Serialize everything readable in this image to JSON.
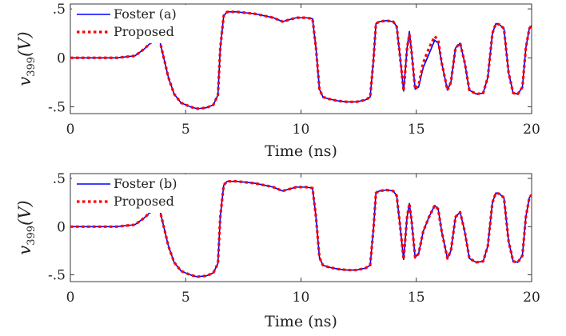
{
  "chart_data": [
    {
      "type": "line",
      "xlabel": "Time (ns)",
      "ylabel": {
        "base": "v",
        "subscript": "399",
        "unit": "(V)"
      },
      "xlim": [
        0,
        20
      ],
      "ylim": [
        -0.57,
        0.55
      ],
      "xticks": [
        0,
        5,
        10,
        15,
        20
      ],
      "yticks": [
        -0.5,
        0,
        0.5
      ],
      "grid": false,
      "legend_position": "top-left",
      "series": [
        {
          "name": "Foster (a)",
          "color": "#0000ff",
          "style": "solid",
          "x": [
            0,
            2.0,
            2.8,
            3.2,
            3.6,
            3.75,
            3.9,
            4.05,
            4.25,
            4.5,
            4.8,
            5.2,
            5.5,
            5.9,
            6.2,
            6.4,
            6.5,
            6.65,
            6.8,
            7.2,
            7.6,
            8.0,
            8.4,
            8.8,
            9.2,
            9.5,
            9.8,
            10.2,
            10.5,
            10.65,
            10.8,
            10.95,
            11.2,
            11.6,
            12.0,
            12.4,
            12.8,
            13.0,
            13.15,
            13.25,
            13.4,
            13.7,
            14.0,
            14.15,
            14.3,
            14.45,
            14.6,
            14.7,
            14.8,
            14.95,
            15.1,
            15.3,
            15.55,
            15.8,
            15.95,
            16.1,
            16.35,
            16.5,
            16.7,
            16.9,
            17.1,
            17.3,
            17.6,
            17.9,
            18.1,
            18.3,
            18.45,
            18.6,
            18.8,
            19.0,
            19.2,
            19.4,
            19.6,
            19.75,
            19.9,
            20.0
          ],
          "y": [
            0.0,
            0.0,
            0.02,
            0.09,
            0.18,
            0.2,
            0.15,
            0.0,
            -0.2,
            -0.37,
            -0.46,
            -0.5,
            -0.52,
            -0.51,
            -0.48,
            -0.38,
            0.1,
            0.43,
            0.47,
            0.47,
            0.46,
            0.45,
            0.43,
            0.41,
            0.37,
            0.39,
            0.41,
            0.41,
            0.4,
            0.1,
            -0.32,
            -0.4,
            -0.42,
            -0.44,
            -0.45,
            -0.45,
            -0.43,
            -0.4,
            0.0,
            0.35,
            0.37,
            0.38,
            0.37,
            0.32,
            0.0,
            -0.34,
            0.1,
            0.27,
            0.05,
            -0.32,
            -0.3,
            -0.1,
            0.04,
            0.18,
            0.15,
            -0.05,
            -0.33,
            -0.25,
            0.1,
            0.15,
            -0.05,
            -0.33,
            -0.37,
            -0.36,
            -0.2,
            0.25,
            0.35,
            0.34,
            0.3,
            -0.15,
            -0.36,
            -0.37,
            -0.3,
            0.1,
            0.3,
            0.33
          ]
        },
        {
          "name": "Proposed",
          "color": "#ff0000",
          "style": "dotted",
          "x": [
            0,
            2.0,
            2.8,
            3.2,
            3.6,
            3.75,
            3.9,
            4.05,
            4.25,
            4.5,
            4.8,
            5.2,
            5.5,
            5.9,
            6.2,
            6.4,
            6.5,
            6.65,
            6.8,
            7.2,
            7.6,
            8.0,
            8.4,
            8.8,
            9.2,
            9.5,
            9.8,
            10.2,
            10.5,
            10.65,
            10.8,
            10.95,
            11.2,
            11.6,
            12.0,
            12.4,
            12.8,
            13.0,
            13.15,
            13.25,
            13.4,
            13.7,
            14.0,
            14.15,
            14.3,
            14.45,
            14.6,
            14.7,
            14.8,
            14.95,
            15.1,
            15.3,
            15.55,
            15.8,
            15.95,
            16.1,
            16.35,
            16.5,
            16.7,
            16.9,
            17.1,
            17.3,
            17.6,
            17.9,
            18.1,
            18.3,
            18.45,
            18.6,
            18.8,
            19.0,
            19.2,
            19.4,
            19.6,
            19.75,
            19.9,
            20.0
          ],
          "y": [
            0.0,
            0.0,
            0.02,
            0.09,
            0.18,
            0.2,
            0.15,
            0.0,
            -0.2,
            -0.37,
            -0.46,
            -0.5,
            -0.52,
            -0.51,
            -0.48,
            -0.38,
            0.1,
            0.43,
            0.47,
            0.47,
            0.46,
            0.45,
            0.43,
            0.41,
            0.37,
            0.39,
            0.41,
            0.41,
            0.4,
            0.1,
            -0.32,
            -0.4,
            -0.42,
            -0.44,
            -0.45,
            -0.45,
            -0.43,
            -0.4,
            0.0,
            0.35,
            0.37,
            0.38,
            0.37,
            0.32,
            0.0,
            -0.34,
            0.1,
            0.24,
            0.05,
            -0.32,
            -0.28,
            -0.05,
            0.1,
            0.22,
            0.18,
            -0.05,
            -0.33,
            -0.25,
            0.1,
            0.15,
            -0.05,
            -0.33,
            -0.37,
            -0.36,
            -0.2,
            0.25,
            0.35,
            0.34,
            0.3,
            -0.15,
            -0.36,
            -0.37,
            -0.3,
            0.1,
            0.3,
            0.33
          ]
        }
      ]
    },
    {
      "type": "line",
      "xlabel": "Time (ns)",
      "ylabel": {
        "base": "v",
        "subscript": "399",
        "unit": "(V)"
      },
      "xlim": [
        0,
        20
      ],
      "ylim": [
        -0.57,
        0.55
      ],
      "xticks": [
        0,
        5,
        10,
        15,
        20
      ],
      "yticks": [
        -0.5,
        0,
        0.5
      ],
      "grid": false,
      "legend_position": "top-left",
      "series": [
        {
          "name": "Foster (b)",
          "color": "#0000ff",
          "style": "solid",
          "x": [
            0,
            2.0,
            2.8,
            3.2,
            3.6,
            3.75,
            3.9,
            4.05,
            4.25,
            4.5,
            4.8,
            5.2,
            5.5,
            5.9,
            6.2,
            6.4,
            6.5,
            6.65,
            6.8,
            7.2,
            7.6,
            8.0,
            8.4,
            8.8,
            9.2,
            9.5,
            9.8,
            10.2,
            10.5,
            10.65,
            10.8,
            10.95,
            11.2,
            11.6,
            12.0,
            12.4,
            12.8,
            13.0,
            13.15,
            13.25,
            13.4,
            13.7,
            14.0,
            14.15,
            14.3,
            14.45,
            14.6,
            14.7,
            14.8,
            14.95,
            15.1,
            15.3,
            15.55,
            15.8,
            15.95,
            16.1,
            16.35,
            16.5,
            16.7,
            16.9,
            17.1,
            17.3,
            17.6,
            17.9,
            18.1,
            18.3,
            18.45,
            18.6,
            18.8,
            19.0,
            19.2,
            19.4,
            19.6,
            19.75,
            19.9,
            20.0
          ],
          "y": [
            0.0,
            0.0,
            0.02,
            0.09,
            0.18,
            0.2,
            0.15,
            0.0,
            -0.2,
            -0.37,
            -0.46,
            -0.5,
            -0.52,
            -0.51,
            -0.48,
            -0.38,
            0.1,
            0.43,
            0.47,
            0.47,
            0.46,
            0.45,
            0.43,
            0.41,
            0.37,
            0.39,
            0.41,
            0.41,
            0.4,
            0.1,
            -0.32,
            -0.4,
            -0.42,
            -0.44,
            -0.45,
            -0.45,
            -0.43,
            -0.4,
            0.0,
            0.35,
            0.37,
            0.38,
            0.37,
            0.32,
            0.0,
            -0.34,
            0.1,
            0.24,
            0.05,
            -0.32,
            -0.28,
            -0.05,
            0.1,
            0.22,
            0.18,
            -0.05,
            -0.33,
            -0.25,
            0.1,
            0.15,
            -0.05,
            -0.33,
            -0.37,
            -0.36,
            -0.2,
            0.25,
            0.35,
            0.34,
            0.3,
            -0.15,
            -0.36,
            -0.37,
            -0.3,
            0.1,
            0.3,
            0.33
          ]
        },
        {
          "name": "Proposed",
          "color": "#ff0000",
          "style": "dotted",
          "x": [
            0,
            2.0,
            2.8,
            3.2,
            3.6,
            3.75,
            3.9,
            4.05,
            4.25,
            4.5,
            4.8,
            5.2,
            5.5,
            5.9,
            6.2,
            6.4,
            6.5,
            6.65,
            6.8,
            7.2,
            7.6,
            8.0,
            8.4,
            8.8,
            9.2,
            9.5,
            9.8,
            10.2,
            10.5,
            10.65,
            10.8,
            10.95,
            11.2,
            11.6,
            12.0,
            12.4,
            12.8,
            13.0,
            13.15,
            13.25,
            13.4,
            13.7,
            14.0,
            14.15,
            14.3,
            14.45,
            14.6,
            14.7,
            14.8,
            14.95,
            15.1,
            15.3,
            15.55,
            15.8,
            15.95,
            16.1,
            16.35,
            16.5,
            16.7,
            16.9,
            17.1,
            17.3,
            17.6,
            17.9,
            18.1,
            18.3,
            18.45,
            18.6,
            18.8,
            19.0,
            19.2,
            19.4,
            19.6,
            19.75,
            19.9,
            20.0
          ],
          "y": [
            0.0,
            0.0,
            0.02,
            0.09,
            0.18,
            0.2,
            0.15,
            0.0,
            -0.2,
            -0.37,
            -0.46,
            -0.5,
            -0.52,
            -0.51,
            -0.48,
            -0.38,
            0.1,
            0.43,
            0.47,
            0.47,
            0.46,
            0.45,
            0.43,
            0.41,
            0.37,
            0.39,
            0.41,
            0.41,
            0.4,
            0.1,
            -0.32,
            -0.4,
            -0.42,
            -0.44,
            -0.45,
            -0.45,
            -0.43,
            -0.4,
            0.0,
            0.35,
            0.37,
            0.38,
            0.37,
            0.32,
            0.0,
            -0.34,
            0.1,
            0.24,
            0.05,
            -0.32,
            -0.28,
            -0.05,
            0.1,
            0.22,
            0.18,
            -0.05,
            -0.33,
            -0.25,
            0.1,
            0.15,
            -0.05,
            -0.33,
            -0.37,
            -0.36,
            -0.2,
            0.25,
            0.35,
            0.34,
            0.3,
            -0.15,
            -0.36,
            -0.37,
            -0.3,
            0.1,
            0.3,
            0.33
          ]
        }
      ]
    }
  ]
}
